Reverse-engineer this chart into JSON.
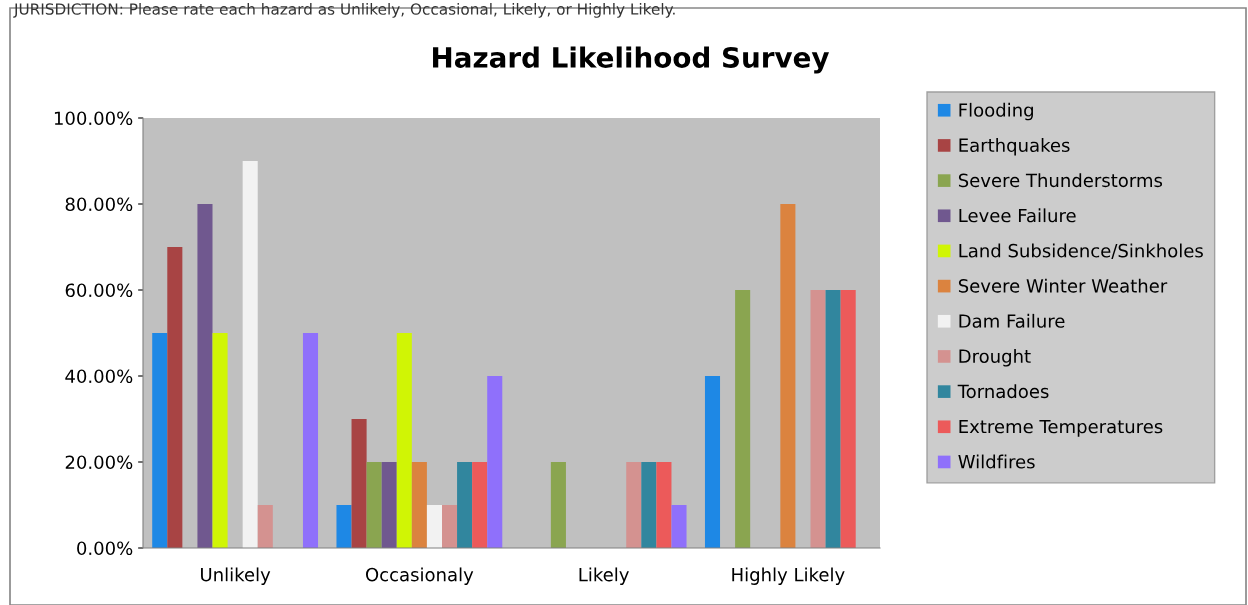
{
  "chart_data": {
    "type": "bar",
    "title": "Hazard Likelihood Survey",
    "annotations": [
      "JURISDICTION: Please rate each hazard as Unlikely, Occasional, Likely, or Highly Likely."
    ],
    "categories": [
      "Unlikely",
      "Occasionaly",
      "Likely",
      "Highly Likely"
    ],
    "series": [
      {
        "name": "Flooding",
        "color": "#1e88e5",
        "values": [
          50,
          10,
          0,
          40
        ]
      },
      {
        "name": "Earthquakes",
        "color": "#a84444",
        "values": [
          70,
          30,
          0,
          0
        ]
      },
      {
        "name": "Severe Thunderstorms",
        "color": "#8aa550",
        "values": [
          0,
          20,
          20,
          60
        ]
      },
      {
        "name": "Levee Failure",
        "color": "#70588f",
        "values": [
          80,
          20,
          0,
          0
        ]
      },
      {
        "name": "Land Subsidence/Sinkholes",
        "color": "#d0f505",
        "values": [
          50,
          50,
          0,
          0
        ]
      },
      {
        "name": "Severe Winter Weather",
        "color": "#db833f",
        "values": [
          0,
          20,
          0,
          80
        ]
      },
      {
        "name": "Dam Failure",
        "color": "#f2f2f2",
        "values": [
          90,
          10,
          0,
          0
        ]
      },
      {
        "name": "Drought",
        "color": "#d49290",
        "values": [
          10,
          10,
          20,
          60
        ]
      },
      {
        "name": "Tornadoes",
        "color": "#31869e",
        "values": [
          0,
          20,
          20,
          60
        ]
      },
      {
        "name": "Extreme Temperatures",
        "color": "#ec5a5a",
        "values": [
          0,
          20,
          20,
          60
        ]
      },
      {
        "name": "Wildfires",
        "color": "#8f70fb",
        "values": [
          50,
          40,
          10,
          0
        ]
      }
    ],
    "ylim": [
      0,
      100
    ],
    "yticks": [
      {
        "value": 0,
        "label": "0.00%"
      },
      {
        "value": 20,
        "label": "20.00%"
      },
      {
        "value": 40,
        "label": "40.00%"
      },
      {
        "value": 60,
        "label": "60.00%"
      },
      {
        "value": 80,
        "label": "80.00%"
      },
      {
        "value": 100,
        "label": "100.00%"
      }
    ],
    "grid": false,
    "legend": "right"
  }
}
